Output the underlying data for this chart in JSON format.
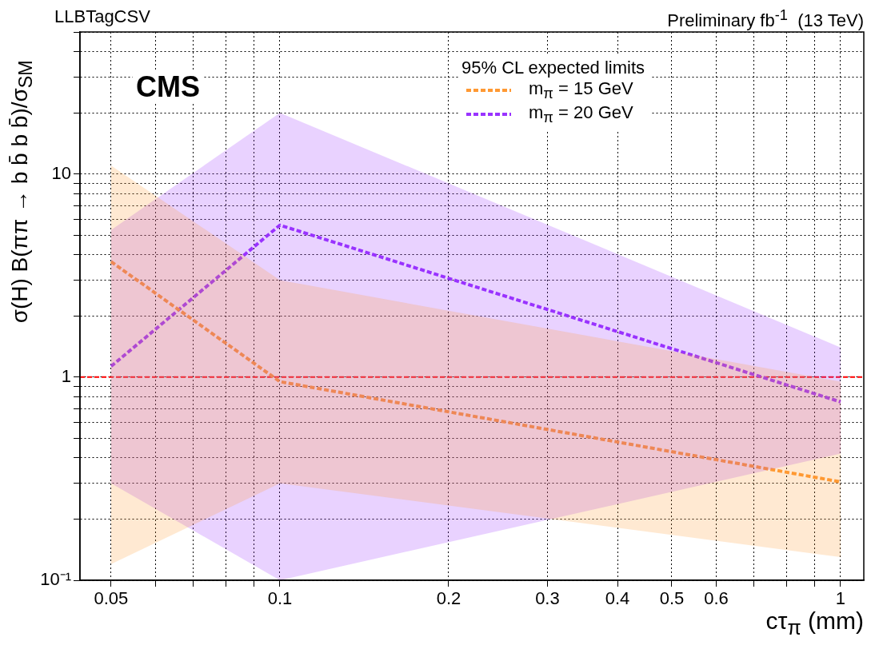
{
  "chart_data": {
    "type": "line",
    "title": "LLBTagCSV",
    "subtitle": "Preliminary fb$^{-1}$  (13 TeV)",
    "xlabel": "cτ$_{π}$ (mm)",
    "ylabel": "σ(H) B(ππ → b b̄ b b̄)/σ$_{SM}$",
    "legend_title": "95% CL expected limits",
    "annotations": [
      "CMS"
    ],
    "x": [
      0.05,
      0.1,
      1
    ],
    "series": [
      {
        "name": "m$_{π}$ = 15 GeV",
        "color": "#ff9933",
        "values": [
          3.7,
          0.95,
          0.305
        ],
        "lower": [
          0.12,
          0.3,
          0.13
        ],
        "upper": [
          11,
          3,
          0.95
        ]
      },
      {
        "name": "m$_{π}$ = 20 GeV",
        "color": "#9933ff",
        "values": [
          1.13,
          5.6,
          0.755
        ],
        "lower": [
          0.3,
          0.1,
          0.42
        ],
        "upper": [
          5.3,
          20,
          1.4
        ]
      }
    ],
    "ref_lines": [
      {
        "axis": "y",
        "value": 1,
        "color": "#ff0000",
        "line_style": "dashed"
      }
    ],
    "log": "xy",
    "xlim": [
      0.044,
      1.1
    ],
    "ylim": [
      0.1,
      50
    ],
    "xticks": [
      0.05,
      {
        "value": 0.06,
        "label": null
      },
      {
        "value": 0.07,
        "label": null
      },
      {
        "value": 0.08,
        "label": null
      },
      {
        "value": 0.09,
        "label": null
      },
      0.1,
      0.2,
      0.3,
      0.4,
      0.5,
      0.6,
      {
        "value": 0.7,
        "label": null
      },
      {
        "value": 0.8,
        "label": null
      },
      {
        "value": 0.9,
        "label": null
      },
      1
    ],
    "yticks": [
      {
        "value": 0.1,
        "label": "10⁻¹"
      },
      {
        "value": 0.2,
        "label": null
      },
      {
        "value": 0.3,
        "label": null
      },
      {
        "value": 0.4,
        "label": null
      },
      {
        "value": 0.5,
        "label": null
      },
      {
        "value": 0.6,
        "label": null
      },
      {
        "value": 0.7,
        "label": null
      },
      {
        "value": 0.8,
        "label": null
      },
      {
        "value": 0.9,
        "label": null
      },
      1,
      {
        "value": 2,
        "label": null
      },
      {
        "value": 3,
        "label": null
      },
      {
        "value": 4,
        "label": null
      },
      {
        "value": 5,
        "label": null
      },
      {
        "value": 6,
        "label": null
      },
      {
        "value": 7,
        "label": null
      },
      {
        "value": 8,
        "label": null
      },
      {
        "value": 9,
        "label": null
      },
      10,
      {
        "value": 20,
        "label": null
      },
      {
        "value": 30,
        "label": null
      },
      {
        "value": 40,
        "label": null
      },
      {
        "value": 50,
        "label": null
      }
    ],
    "grid": true,
    "legend": "top right",
    "marker": "none",
    "line_style": "dashed"
  }
}
